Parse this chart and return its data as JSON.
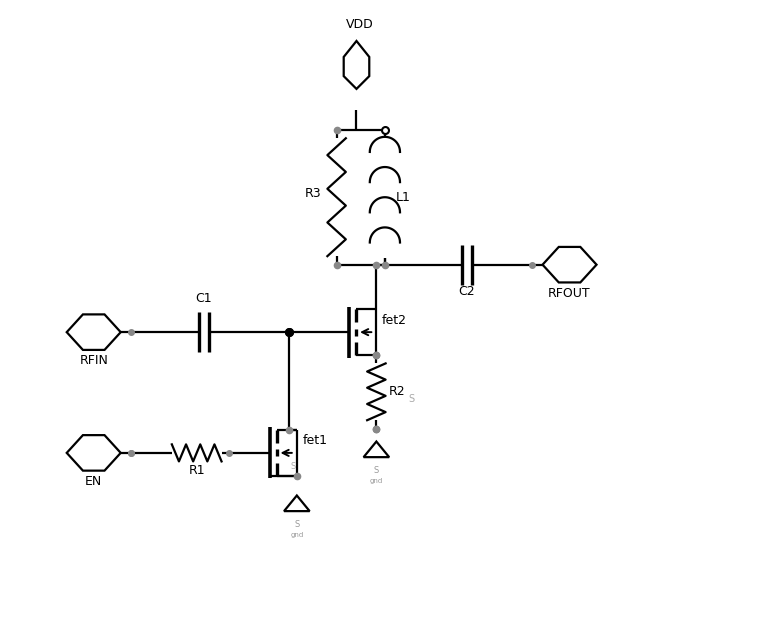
{
  "bg": "#ffffff",
  "lc": "#000000",
  "dc": "#888888",
  "lw": 1.6,
  "fw": 7.84,
  "fh": 6.43,
  "xlim": [
    0,
    11
  ],
  "ylim": [
    0,
    9
  ],
  "VDD": "VDD",
  "RFIN": "RFIN",
  "EN": "EN",
  "RFOUT": "RFOUT",
  "R1": "R1",
  "R2": "R2",
  "R3": "R3",
  "L1": "L1",
  "C1": "C1",
  "C2": "C2",
  "fet1": "fet1",
  "fet2": "fet2",
  "S_label": "S",
  "gnd_label": "gnd"
}
